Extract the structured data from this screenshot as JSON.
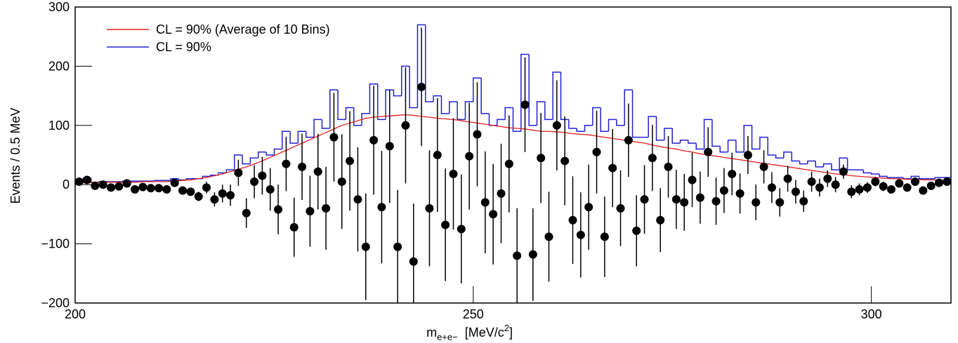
{
  "chart_data": {
    "type": "scatter",
    "y_label": "Events / 0.5 MeV",
    "x_label": {
      "base": "m",
      "subscript": "e+e−",
      "text": "[MeV/c",
      "superscript": "2",
      "close": "]"
    },
    "xlim": [
      200,
      310
    ],
    "ylim": [
      -200,
      300
    ],
    "xticks": [
      200,
      250,
      300
    ],
    "yticks": [
      {
        "value": -200,
        "label": "−200"
      },
      {
        "value": -100,
        "label": "−100"
      },
      0,
      100,
      200,
      300
    ],
    "legend": "top-left",
    "x": [
      200.5,
      201.5,
      202.5,
      203.5,
      204.5,
      205.5,
      206.5,
      207.5,
      208.5,
      209.5,
      210.5,
      211.5,
      212.5,
      213.5,
      214.5,
      215.5,
      216.5,
      217.5,
      218.5,
      219.5,
      220.5,
      221.5,
      222.5,
      223.5,
      224.5,
      225.5,
      226.5,
      227.5,
      228.5,
      229.5,
      230.5,
      231.5,
      232.5,
      233.5,
      234.5,
      235.5,
      236.5,
      237.5,
      238.5,
      239.5,
      240.5,
      241.5,
      242.5,
      243.5,
      244.5,
      245.5,
      246.5,
      247.5,
      248.5,
      249.5,
      250.5,
      251.5,
      252.5,
      253.5,
      254.5,
      255.5,
      256.5,
      257.5,
      258.5,
      259.5,
      260.5,
      261.5,
      262.5,
      263.5,
      264.5,
      265.5,
      266.5,
      267.5,
      268.5,
      269.5,
      270.5,
      271.5,
      272.5,
      273.5,
      274.5,
      275.5,
      276.5,
      277.5,
      278.5,
      279.5,
      280.5,
      281.5,
      282.5,
      283.5,
      284.5,
      285.5,
      286.5,
      287.5,
      288.5,
      289.5,
      290.5,
      291.5,
      292.5,
      293.5,
      294.5,
      295.5,
      296.5,
      297.5,
      298.5,
      299.5,
      300.5,
      301.5,
      302.5,
      303.5,
      304.5,
      305.5,
      306.5,
      307.5,
      308.5,
      309.5
    ],
    "series": [
      {
        "name": "CL = 90% (Average of 10 Bins)",
        "type": "line",
        "color": "#e02020",
        "values": [
          3,
          3,
          4,
          4,
          4,
          4,
          4,
          4,
          5,
          5,
          5,
          5,
          6,
          7,
          8,
          10,
          12,
          15,
          18,
          22,
          26,
          30,
          35,
          40,
          46,
          52,
          58,
          64,
          70,
          76,
          82,
          88,
          94,
          100,
          104,
          108,
          112,
          114,
          115,
          116,
          117,
          118,
          117,
          115,
          114,
          112,
          111,
          110,
          108,
          106,
          104,
          102,
          100,
          98,
          96,
          95,
          94,
          92,
          90,
          90,
          89,
          88,
          86,
          85,
          84,
          82,
          80,
          78,
          76,
          74,
          72,
          70,
          67,
          64,
          62,
          60,
          57,
          55,
          52,
          50,
          48,
          46,
          44,
          42,
          40,
          38,
          36,
          34,
          32,
          30,
          28,
          26,
          24,
          22,
          20,
          18,
          17,
          15,
          14,
          13,
          12,
          11,
          10,
          10,
          9,
          9,
          8,
          8,
          8,
          7
        ]
      },
      {
        "name": "CL = 90%",
        "type": "step",
        "color": "#2020d0",
        "values": [
          8,
          11,
          4,
          5,
          5,
          5,
          6,
          6,
          6,
          6,
          7,
          7,
          10,
          8,
          10,
          10,
          14,
          16,
          20,
          25,
          50,
          35,
          45,
          55,
          50,
          60,
          90,
          70,
          90,
          80,
          110,
          95,
          160,
          110,
          130,
          100,
          120,
          170,
          110,
          160,
          150,
          200,
          130,
          270,
          140,
          150,
          120,
          140,
          110,
          140,
          180,
          120,
          100,
          110,
          130,
          90,
          220,
          100,
          140,
          110,
          190,
          110,
          95,
          90,
          100,
          130,
          90,
          110,
          100,
          160,
          80,
          80,
          115,
          75,
          95,
          70,
          75,
          70,
          60,
          110,
          65,
          55,
          75,
          55,
          100,
          60,
          80,
          50,
          45,
          55,
          40,
          35,
          40,
          30,
          35,
          25,
          45,
          25,
          25,
          20,
          18,
          14,
          12,
          12,
          10,
          14,
          10,
          10,
          12,
          12
        ]
      },
      {
        "type": "errorbar",
        "color": "#000000",
        "values": [
          5,
          8,
          -2,
          0,
          -5,
          -3,
          2,
          -8,
          -4,
          -6,
          -6,
          -8,
          3,
          -10,
          -12,
          -20,
          -5,
          -25,
          -15,
          -18,
          20,
          -48,
          5,
          15,
          -8,
          -42,
          35,
          -72,
          30,
          -45,
          22,
          -40,
          80,
          5,
          40,
          -25,
          -105,
          75,
          -38,
          65,
          -105,
          100,
          -130,
          165,
          -40,
          50,
          -68,
          18,
          -75,
          48,
          85,
          -30,
          -50,
          -15,
          35,
          -120,
          135,
          -118,
          45,
          -88,
          100,
          40,
          -60,
          -85,
          -38,
          55,
          -88,
          28,
          -40,
          75,
          -78,
          -25,
          45,
          -60,
          30,
          -25,
          -30,
          8,
          -22,
          55,
          -28,
          -10,
          18,
          -15,
          50,
          -30,
          30,
          -5,
          -30,
          10,
          -12,
          -28,
          5,
          -5,
          10,
          0,
          22,
          -12,
          -8,
          -5,
          5,
          -3,
          -8,
          2,
          -5,
          5,
          -10,
          -2,
          3,
          5
        ],
        "errors": [
          3,
          3,
          3,
          3,
          3,
          3,
          3,
          4,
          4,
          4,
          4,
          4,
          5,
          6,
          7,
          8,
          10,
          12,
          15,
          18,
          22,
          25,
          28,
          32,
          36,
          42,
          46,
          50,
          56,
          60,
          64,
          70,
          75,
          80,
          84,
          88,
          90,
          92,
          95,
          96,
          96,
          98,
          98,
          100,
          98,
          96,
          95,
          94,
          92,
          90,
          88,
          86,
          85,
          84,
          82,
          80,
          80,
          78,
          76,
          76,
          76,
          75,
          74,
          72,
          72,
          70,
          68,
          66,
          64,
          62,
          60,
          58,
          56,
          54,
          52,
          50,
          48,
          46,
          44,
          42,
          40,
          38,
          36,
          34,
          32,
          30,
          28,
          26,
          24,
          22,
          20,
          18,
          17,
          15,
          14,
          13,
          12,
          11,
          10,
          9,
          8,
          8,
          7,
          7,
          6,
          6,
          6,
          5,
          5,
          5
        ]
      }
    ]
  }
}
